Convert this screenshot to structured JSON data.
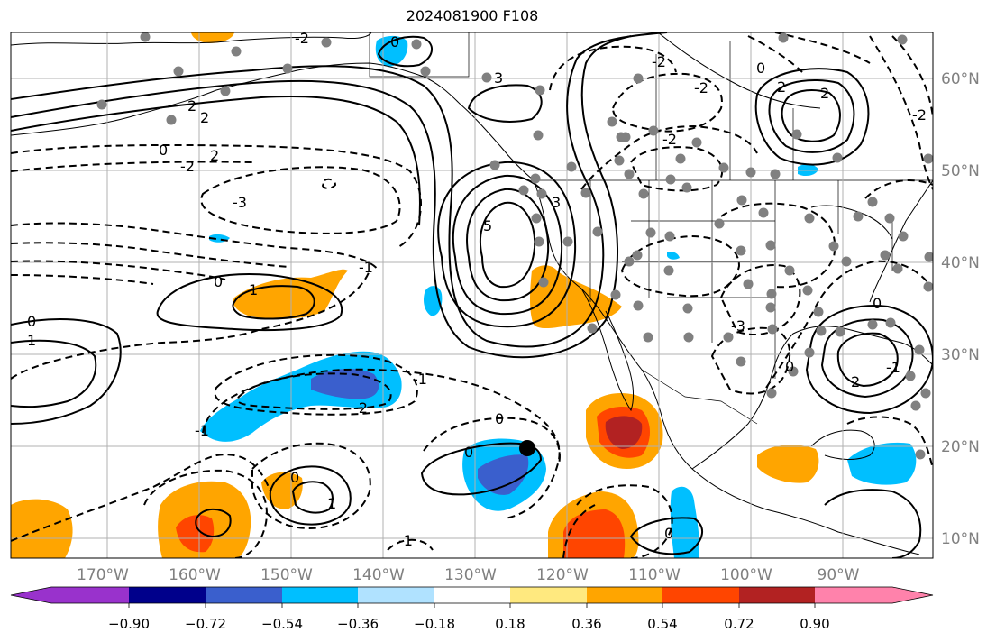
{
  "title": "2024081900 F108",
  "longitude_labels": [
    "170°W",
    "160°W",
    "150°W",
    "140°W",
    "130°W",
    "120°W",
    "110°W",
    "100°W",
    "90°W"
  ],
  "latitude_labels": [
    "60°N",
    "50°N",
    "40°N",
    "30°N",
    "20°N",
    "10°N"
  ],
  "colorbar": {
    "tick_labels": [
      "−0.90",
      "−0.72",
      "−0.54",
      "−0.36",
      "−0.18",
      "0.18",
      "0.36",
      "0.54",
      "0.72",
      "0.90"
    ],
    "colors": [
      "#9932cc",
      "#00008b",
      "#3a5fcd",
      "#00bfff",
      "#b0e2ff",
      "#ffffff",
      "#ffe97f",
      "#ffa500",
      "#ff4500",
      "#b22222",
      "#ff82ab"
    ]
  },
  "contour_labels": [
    "0",
    "-2",
    "2",
    "3",
    "-2",
    "2",
    "0",
    "-2",
    "2",
    "-3",
    "5",
    "3",
    "-1",
    "0",
    "1",
    "0",
    "1",
    "-2",
    "-1",
    "0",
    "0",
    "-1",
    "0",
    "1",
    "-1",
    "2",
    "-2",
    "0",
    "-2",
    "2",
    "-1",
    "0",
    "0",
    "2",
    "-3",
    "0",
    "-2"
  ],
  "colors": {
    "land_marker": "#808080",
    "axis_text": "#808080",
    "grid": "#b0b0b0"
  }
}
